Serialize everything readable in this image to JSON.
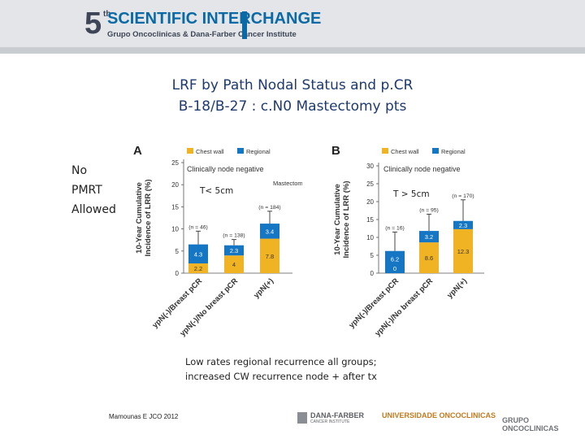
{
  "header": {
    "edition_number": "5",
    "edition_suffix": "th",
    "event_title": "SCIENTIFIC INTERCHANGE",
    "event_subtitle": "Grupo Oncoclinicas & Dana-Farber Cancer Institute"
  },
  "slide": {
    "title_line1": "LRF by Path Nodal Status and p.CR",
    "title_line2": "B-18/B-27 :  c.N0 Mastectomy pts",
    "side_label": [
      "No",
      "PMRT",
      "Allowed"
    ],
    "note_line1": "Low rates regional recurrence all groups;",
    "note_line2": "increased CW recurrence node + after tx",
    "citation": "Mamounas E JCO 2012"
  },
  "footer": {
    "dana_farber_logo": "DANA-FARBER",
    "dana_farber_sub": "CANCER INSTITUTE",
    "university_logo": "UNIVERSIDADE ONCOCLINICAS",
    "grupo_logo": "GRUPO ONCOCLINICAS"
  },
  "colors": {
    "chest_wall": "#f0b323",
    "regional": "#1576c4",
    "title": "#1e3a6e"
  },
  "chart_data": [
    {
      "type": "bar",
      "panel": "A",
      "stacked": true,
      "annotation": "T< 5cm",
      "subtitle": "Clinically node negative",
      "corner_label": "Mastectomy",
      "ylabel_line1": "10-Year Cumulative",
      "ylabel_line2": "Incidence of LRR (%)",
      "ylim": [
        0,
        25
      ],
      "yticks": [
        "0",
        "5",
        "10",
        "15",
        "20",
        "25"
      ],
      "legend": [
        "Chest wall",
        "Regional"
      ],
      "categories": [
        "ypN(-)/Breast pCR",
        "ypN(-)/No breast pCR",
        "ypN(+)"
      ],
      "n_labels": [
        "(n = 46)",
        "(n = 138)",
        "(n = 184)"
      ],
      "series": [
        {
          "name": "Chest wall",
          "values": [
            2.2,
            4,
            7.8
          ],
          "labels": [
            "2.2",
            "4",
            "7.8"
          ]
        },
        {
          "name": "Regional",
          "values": [
            4.3,
            2.3,
            3.4
          ],
          "labels": [
            "4.3",
            "2.3",
            "3.4"
          ]
        }
      ],
      "error_top": [
        9.5,
        7.6,
        14.0
      ]
    },
    {
      "type": "bar",
      "panel": "B",
      "stacked": true,
      "annotation": "T > 5cm",
      "subtitle": "Clinically node negative",
      "corner_label": "",
      "ylabel_line1": "10-Year Cumulative",
      "ylabel_line2": "Incidence of LRR (%)",
      "ylim": [
        0,
        30
      ],
      "yticks": [
        "0",
        "5",
        "10",
        "15",
        "20",
        "25",
        "30"
      ],
      "legend": [
        "Chest wall",
        "Regional"
      ],
      "categories": [
        "ypN(-)/Breast pCR",
        "ypN(-)/No breast pCR",
        "ypN(+)"
      ],
      "n_labels": [
        "(n = 16)",
        "(n = 95)",
        "(n = 170)"
      ],
      "series": [
        {
          "name": "Chest wall",
          "values": [
            0,
            8.6,
            12.3
          ],
          "labels": [
            "0",
            "8.6",
            "12.3"
          ]
        },
        {
          "name": "Regional",
          "values": [
            6.2,
            3.2,
            2.3
          ],
          "labels": [
            "6.2",
            "3.2",
            "2.3"
          ]
        }
      ],
      "error_top": [
        11.5,
        16.5,
        20.5
      ]
    }
  ]
}
